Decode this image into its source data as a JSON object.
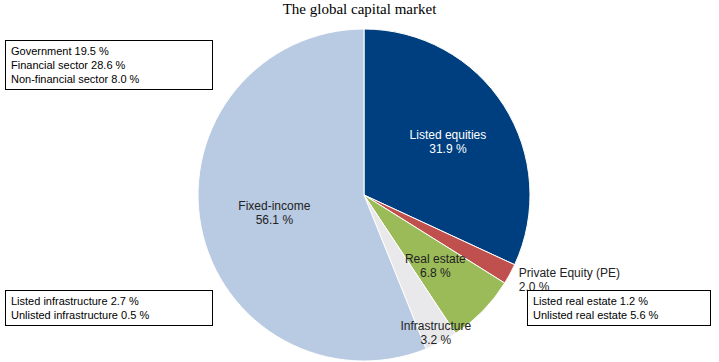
{
  "chart_data": {
    "type": "pie",
    "title": "The global capital market",
    "categories": [
      "Listed equities",
      "Private Equity (PE)",
      "Real estate",
      "Infrastructure",
      "Fixed-income"
    ],
    "values": [
      31.9,
      2.0,
      6.8,
      3.2,
      56.1
    ],
    "value_labels": [
      "31.9 %",
      "2.0 %",
      "6.8 %",
      "3.2 %",
      "56.1 %"
    ],
    "colors": [
      "#003f7f",
      "#c0504d",
      "#9bbb59",
      "#e9e9ec",
      "#b9cae3"
    ],
    "data_labels": true,
    "annotations": [
      [
        "Government 19.5 %",
        "Financial sector 28.6 %",
        "Non-financial sector 8.0 %"
      ],
      [
        "Listed infrastructure 2.7 %",
        "Unlisted infrastructure 0.5 %"
      ],
      [
        "Listed real estate 1.2 %",
        "Unlisted real estate 5.6 %"
      ]
    ]
  }
}
